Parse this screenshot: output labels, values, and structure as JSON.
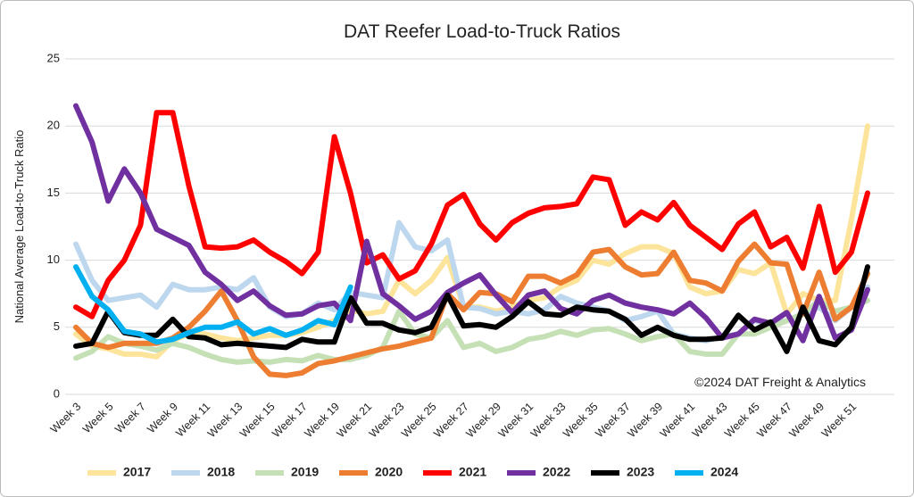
{
  "chart_data": {
    "type": "line",
    "title": "DAT Reefer Load-to-Truck Ratios",
    "ylabel": "National Average Load-to-Truck Ratio",
    "annotation": "©2024 DAT Freight & Analytics",
    "categories": [
      "Week 3",
      null,
      "Week 5",
      null,
      "Week 7",
      null,
      "Week 9",
      null,
      "Week 11",
      null,
      "Week 13",
      null,
      "Week 15",
      null,
      "Week 17",
      null,
      "Week 19",
      null,
      "Week 21",
      null,
      "Week 23",
      null,
      "Week 25",
      null,
      "Week 27",
      null,
      "Week 29",
      null,
      "Week 31",
      null,
      "Week 33",
      null,
      "Week 35",
      null,
      "Week 37",
      null,
      "Week 39",
      null,
      "Week 41",
      null,
      "Week 43",
      null,
      "Week 45",
      null,
      "Week 47",
      null,
      "Week 49",
      null,
      "Week 51",
      null
    ],
    "ylim": [
      0,
      25
    ],
    "yticks": [
      0,
      5,
      10,
      15,
      20,
      25
    ],
    "grid": true,
    "legend": "bottom",
    "series": [
      {
        "name": "2017",
        "color": "#fde49b",
        "values": [
          4.5,
          3.6,
          3.4,
          3.0,
          3.0,
          2.8,
          4.0,
          4.5,
          4.5,
          4.2,
          4.0,
          4.2,
          4.4,
          4.4,
          4.6,
          5.0,
          5.5,
          6.3,
          6.0,
          6.2,
          8.5,
          7.5,
          8.5,
          10.2,
          6.5,
          6.5,
          6.2,
          6.5,
          7.0,
          7.2,
          8.0,
          8.5,
          10.0,
          9.7,
          10.5,
          11.0,
          11.0,
          10.5,
          8.0,
          7.5,
          7.7,
          9.3,
          9.0,
          9.8,
          6.0,
          7.5,
          7.0,
          7.0,
          13.0,
          20.0
        ]
      },
      {
        "name": "2018",
        "color": "#bdd7ee",
        "values": [
          11.2,
          8.5,
          7.0,
          7.2,
          7.4,
          6.5,
          8.2,
          7.8,
          7.8,
          8.0,
          7.8,
          8.7,
          6.5,
          5.8,
          6.0,
          6.8,
          6.3,
          7.6,
          7.4,
          7.2,
          12.8,
          11.0,
          10.7,
          11.5,
          6.5,
          6.4,
          6.0,
          6.2,
          6.0,
          6.3,
          7.3,
          6.8,
          6.5,
          6.2,
          5.5,
          5.8,
          6.2,
          4.5,
          4.2,
          4.0,
          4.3,
          4.5,
          5.5,
          5.2,
          5.5,
          6.0,
          6.5,
          5.5,
          6.5,
          8.0
        ]
      },
      {
        "name": "2019",
        "color": "#c5e0b4",
        "values": [
          2.7,
          3.2,
          4.3,
          3.8,
          3.6,
          3.3,
          3.8,
          3.5,
          3.0,
          2.6,
          2.4,
          2.5,
          2.4,
          2.6,
          2.5,
          2.9,
          2.6,
          2.6,
          2.9,
          3.5,
          6.2,
          4.5,
          4.2,
          5.5,
          3.5,
          3.8,
          3.2,
          3.5,
          4.1,
          4.3,
          4.7,
          4.4,
          4.8,
          4.9,
          4.5,
          4.0,
          4.3,
          4.5,
          3.2,
          3.0,
          3.0,
          4.5,
          4.5,
          5.0,
          5.5,
          6.0,
          7.0,
          6.2,
          6.5,
          7.0
        ]
      },
      {
        "name": "2020",
        "color": "#ed7d31",
        "values": [
          5.0,
          3.8,
          3.5,
          3.8,
          3.8,
          3.8,
          4.2,
          5.0,
          6.2,
          7.7,
          5.5,
          2.8,
          1.5,
          1.4,
          1.6,
          2.3,
          2.5,
          2.8,
          3.1,
          3.4,
          3.6,
          3.9,
          4.2,
          7.5,
          6.3,
          7.6,
          7.5,
          6.9,
          8.8,
          8.8,
          8.3,
          8.9,
          10.6,
          10.8,
          9.5,
          8.9,
          9.0,
          10.6,
          8.5,
          8.3,
          7.7,
          9.9,
          11.2,
          9.8,
          9.7,
          6.0,
          9.1,
          5.6,
          6.5,
          9.0
        ]
      },
      {
        "name": "2021",
        "color": "#ff0000",
        "values": [
          6.5,
          5.8,
          8.5,
          10.0,
          12.6,
          21.0,
          21.0,
          15.5,
          11.0,
          10.9,
          11.0,
          11.5,
          10.6,
          9.9,
          9.0,
          10.6,
          19.2,
          15.0,
          9.8,
          10.4,
          8.6,
          9.2,
          11.2,
          14.1,
          14.9,
          12.7,
          11.5,
          12.8,
          13.5,
          13.9,
          14.0,
          14.2,
          16.2,
          16.0,
          12.6,
          13.6,
          13.0,
          14.3,
          12.6,
          11.7,
          10.8,
          12.7,
          13.6,
          11.0,
          11.7,
          9.4,
          14.0,
          9.1,
          10.6,
          15.0
        ]
      },
      {
        "name": "2022",
        "color": "#7030a0",
        "values": [
          21.5,
          18.8,
          14.4,
          16.8,
          15.0,
          12.3,
          11.7,
          11.1,
          9.1,
          8.2,
          7.0,
          7.7,
          6.6,
          5.9,
          6.0,
          6.6,
          6.8,
          5.5,
          11.4,
          7.5,
          6.6,
          5.6,
          6.2,
          7.6,
          8.3,
          8.9,
          7.4,
          6.1,
          7.4,
          7.7,
          6.4,
          6.0,
          7.0,
          7.4,
          6.8,
          6.5,
          6.3,
          6.0,
          6.8,
          5.7,
          4.2,
          4.5,
          5.6,
          5.3,
          6.1,
          4.0,
          7.3,
          4.2,
          4.8,
          7.8
        ]
      },
      {
        "name": "2023",
        "color": "#000000",
        "values": [
          3.6,
          3.8,
          6.2,
          4.6,
          4.4,
          4.4,
          5.6,
          4.3,
          4.2,
          3.7,
          3.8,
          3.7,
          3.6,
          3.5,
          4.1,
          3.9,
          3.9,
          7.2,
          5.3,
          5.3,
          4.8,
          4.6,
          5.0,
          7.4,
          5.1,
          5.2,
          5.0,
          5.8,
          6.9,
          6.0,
          5.9,
          6.5,
          6.3,
          6.2,
          5.6,
          4.4,
          5.0,
          4.4,
          4.1,
          4.1,
          4.2,
          5.9,
          4.8,
          5.4,
          3.2,
          6.5,
          4.0,
          3.7,
          5.0,
          9.5
        ]
      },
      {
        "name": "2024",
        "color": "#00b0f0",
        "values": [
          9.5,
          7.3,
          6.3,
          4.7,
          4.5,
          3.9,
          4.1,
          4.6,
          5.0,
          5.0,
          5.4,
          4.5,
          4.9,
          4.4,
          4.8,
          5.5,
          5.2,
          8.0,
          null,
          null,
          null,
          null,
          null,
          null,
          null,
          null,
          null,
          null,
          null,
          null,
          null,
          null,
          null,
          null,
          null,
          null,
          null,
          null,
          null,
          null,
          null,
          null,
          null,
          null,
          null,
          null,
          null,
          null,
          null,
          null
        ]
      }
    ]
  }
}
